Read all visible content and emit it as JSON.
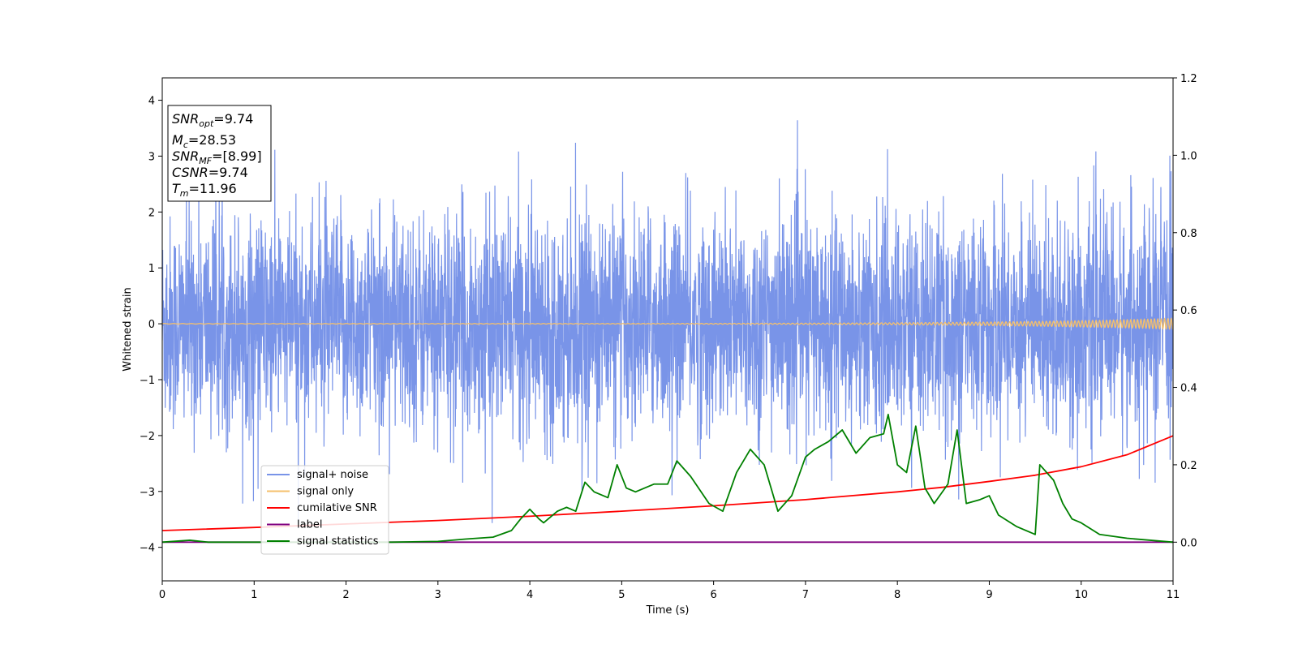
{
  "chart_data": {
    "type": "line",
    "xlabel": "Time (s)",
    "ylabel": "Whitened strain",
    "xlim": [
      0,
      11
    ],
    "ylim_left": [
      -4.6,
      4.4
    ],
    "ylim_right": [
      -0.1,
      1.2
    ],
    "x_ticks": [
      0,
      1,
      2,
      3,
      4,
      5,
      6,
      7,
      8,
      9,
      10,
      11
    ],
    "y_ticks_left": [
      -4,
      -3,
      -2,
      -1,
      0,
      1,
      2,
      3,
      4
    ],
    "y_ticks_right": [
      0.0,
      0.2,
      0.4,
      0.6,
      0.8,
      1.0,
      1.2
    ],
    "y_tick_labels_left": [
      "−4",
      "−3",
      "−2",
      "−1",
      "0",
      "1",
      "2",
      "3",
      "4"
    ],
    "y_tick_labels_right": [
      "0.0",
      "0.2",
      "0.4",
      "0.6",
      "0.8",
      "1.0",
      "1.2"
    ],
    "grid": false,
    "legend_position": "lower-left",
    "annotation": {
      "snr_opt": "9.74",
      "mc": "28.53",
      "snr_mf": "[8.99]",
      "csnr": "9.74",
      "tm": "11.96"
    },
    "series": [
      {
        "name": "signal+ noise",
        "axis": "left",
        "color": "#7994e8",
        "description_hidden": false,
        "noise_std": 0.95,
        "x_range": [
          0,
          11
        ]
      },
      {
        "name": "signal only",
        "axis": "left",
        "color": "#f5c06c",
        "x_range": [
          0,
          11
        ]
      },
      {
        "name": "cumilative SNR",
        "axis": "right",
        "color": "#ff0000",
        "x": [
          0,
          1,
          2,
          3,
          4,
          5,
          6,
          7,
          8,
          8.5,
          9,
          9.5,
          10,
          10.5,
          11
        ],
        "y": [
          0.03,
          0.038,
          0.047,
          0.056,
          0.067,
          0.08,
          0.094,
          0.11,
          0.13,
          0.142,
          0.157,
          0.173,
          0.195,
          0.226,
          0.275
        ]
      },
      {
        "name": "label",
        "axis": "right",
        "color": "#800080",
        "x": [
          0,
          11
        ],
        "y": [
          0.0,
          0.0
        ]
      },
      {
        "name": "signal statistics",
        "axis": "right",
        "color": "#008000",
        "x": [
          0,
          0.3,
          0.5,
          1.0,
          2.0,
          2.5,
          3.0,
          3.3,
          3.6,
          3.8,
          3.9,
          4.0,
          4.1,
          4.15,
          4.3,
          4.4,
          4.5,
          4.6,
          4.7,
          4.85,
          4.95,
          5.05,
          5.15,
          5.35,
          5.5,
          5.6,
          5.75,
          5.95,
          6.1,
          6.25,
          6.4,
          6.55,
          6.7,
          6.85,
          7.0,
          7.1,
          7.25,
          7.4,
          7.55,
          7.7,
          7.85,
          7.9,
          8.0,
          8.1,
          8.2,
          8.3,
          8.4,
          8.55,
          8.65,
          8.75,
          8.9,
          9.0,
          9.1,
          9.3,
          9.5,
          9.55,
          9.7,
          9.8,
          9.9,
          10.0,
          10.2,
          10.5,
          11.0
        ],
        "y": [
          0.0,
          0.005,
          0.0,
          0.0,
          0.0,
          0.0,
          0.002,
          0.008,
          0.013,
          0.03,
          0.06,
          0.085,
          0.06,
          0.05,
          0.08,
          0.09,
          0.08,
          0.155,
          0.13,
          0.115,
          0.2,
          0.14,
          0.13,
          0.15,
          0.15,
          0.21,
          0.17,
          0.1,
          0.08,
          0.18,
          0.24,
          0.2,
          0.08,
          0.12,
          0.22,
          0.24,
          0.26,
          0.29,
          0.23,
          0.27,
          0.28,
          0.33,
          0.2,
          0.18,
          0.3,
          0.14,
          0.1,
          0.15,
          0.29,
          0.1,
          0.11,
          0.12,
          0.07,
          0.04,
          0.02,
          0.2,
          0.16,
          0.1,
          0.06,
          0.05,
          0.02,
          0.01,
          0.0
        ]
      }
    ]
  }
}
